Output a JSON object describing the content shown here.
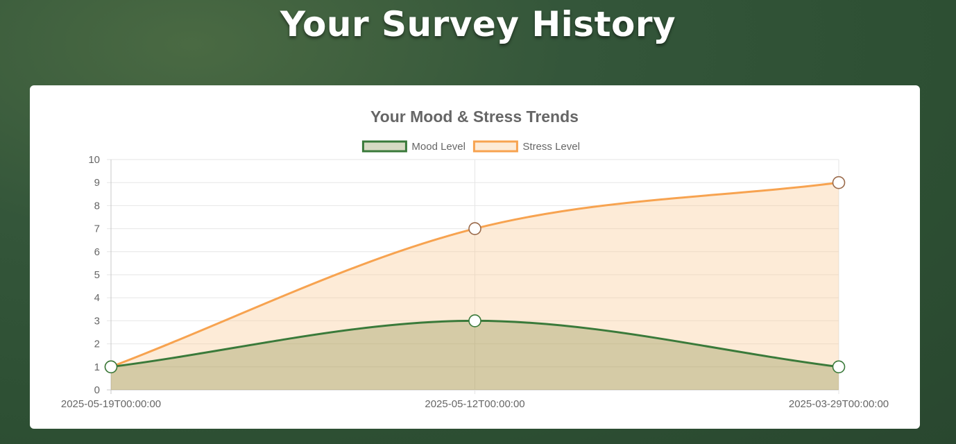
{
  "page": {
    "title": "Your Survey History"
  },
  "chart_data": {
    "type": "line",
    "title": "Your Mood & Stress Trends",
    "xlabel": "",
    "ylabel": "",
    "x": [
      "2025-05-19T00:00:00",
      "2025-05-12T00:00:00",
      "2025-03-29T00:00:00"
    ],
    "ylim": [
      0,
      10
    ],
    "yticks": [
      "0",
      "1",
      "2",
      "3",
      "4",
      "5",
      "6",
      "7",
      "8",
      "9",
      "10"
    ],
    "grid": true,
    "legend_position": "top",
    "series": [
      {
        "name": "Mood Level",
        "values": [
          1,
          3,
          1
        ],
        "color": "#3a7a3a",
        "fill": "rgba(111,122,40,0.28)",
        "filled": true
      },
      {
        "name": "Stress Level",
        "values": [
          1,
          7,
          9
        ],
        "color": "#f7a350",
        "fill": "rgba(251,203,150,0.38)",
        "filled": true
      }
    ]
  }
}
